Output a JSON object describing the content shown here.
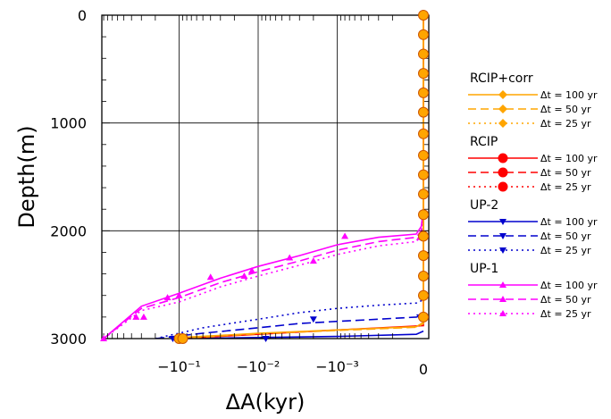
{
  "chart_data": {
    "type": "line",
    "xlabel": "ΔA(kyr)",
    "ylabel": "Depth(m)",
    "x_scale": "symlog",
    "x_ticks": [
      {
        "value": -0.1,
        "label": "−10⁻¹"
      },
      {
        "value": -0.01,
        "label": "−10⁻²"
      },
      {
        "value": -0.001,
        "label": "−10⁻³"
      },
      {
        "value": 0,
        "label": "0"
      }
    ],
    "y_ticks": [
      0,
      1000,
      2000,
      3000
    ],
    "ylim": [
      3000,
      0
    ],
    "grid": true,
    "legend": "right",
    "legend_groups": [
      {
        "title": "RCIP+corr",
        "color": "#ffa500",
        "marker": "diamond",
        "entries": [
          {
            "label": "Δt = 100 yr",
            "dash": "solid"
          },
          {
            "label": "Δt = 50 yr",
            "dash": "dashed"
          },
          {
            "label": "Δt = 25 yr",
            "dash": "dotted"
          }
        ]
      },
      {
        "title": "RCIP",
        "color": "#ff0000",
        "marker": "circle",
        "entries": [
          {
            "label": "Δt = 100 yr",
            "dash": "solid"
          },
          {
            "label": "Δt = 50 yr",
            "dash": "dashed"
          },
          {
            "label": "Δt = 25 yr",
            "dash": "dotted"
          }
        ]
      },
      {
        "title": "UP-2",
        "color": "#0000cd",
        "marker": "triangle-down",
        "entries": [
          {
            "label": "Δt = 100 yr",
            "dash": "solid"
          },
          {
            "label": "Δt = 50 yr",
            "dash": "dashed"
          },
          {
            "label": "Δt = 25 yr",
            "dash": "dotted"
          }
        ]
      },
      {
        "title": "UP-1",
        "color": "#ff00ff",
        "marker": "triangle-up",
        "entries": [
          {
            "label": "Δt = 100 yr",
            "dash": "solid"
          },
          {
            "label": "Δt = 50 yr",
            "dash": "dashed"
          },
          {
            "label": "Δt = 25 yr",
            "dash": "dotted"
          }
        ]
      }
    ],
    "series": [
      {
        "group": 3,
        "dash": "solid",
        "x": [
          -0.9,
          -0.3,
          -0.1,
          -0.03,
          -0.01,
          -0.003,
          -0.001,
          -0.0003,
          -0.0001,
          -3e-05,
          0
        ],
        "y": [
          3000,
          2700,
          2580,
          2440,
          2330,
          2230,
          2130,
          2060,
          2030,
          1960,
          1800
        ]
      },
      {
        "group": 3,
        "dash": "dashed",
        "x": [
          -0.9,
          -0.3,
          -0.1,
          -0.03,
          -0.01,
          -0.003,
          -0.001,
          -0.0003,
          -0.0001,
          -3e-05,
          0
        ],
        "y": [
          3000,
          2720,
          2620,
          2480,
          2380,
          2280,
          2180,
          2100,
          2060,
          2000,
          1850
        ]
      },
      {
        "group": 3,
        "dash": "dotted",
        "x": [
          -0.9,
          -0.3,
          -0.1,
          -0.03,
          -0.01,
          -0.003,
          -0.001,
          -0.0003,
          -0.0001,
          -3e-05,
          0
        ],
        "y": [
          3000,
          2740,
          2660,
          2520,
          2420,
          2320,
          2220,
          2140,
          2100,
          2040,
          1900
        ]
      },
      {
        "group": 2,
        "dash": "solid",
        "x": [
          -0.1,
          -0.01,
          -0.001,
          -0.0001,
          0
        ],
        "y": [
          3000,
          2990,
          2980,
          2960,
          2930
        ]
      },
      {
        "group": 2,
        "dash": "dashed",
        "x": [
          -0.2,
          -0.05,
          -0.01,
          -0.003,
          -0.001,
          -0.0003,
          -0.0001,
          0
        ],
        "y": [
          3000,
          2950,
          2900,
          2860,
          2840,
          2820,
          2800,
          2780
        ]
      },
      {
        "group": 2,
        "dash": "dotted",
        "x": [
          -0.2,
          -0.05,
          -0.01,
          -0.003,
          -0.001,
          -0.0003,
          -0.0001,
          0
        ],
        "y": [
          3000,
          2900,
          2820,
          2760,
          2720,
          2690,
          2670,
          2640
        ]
      },
      {
        "group": 1,
        "dash": "solid",
        "x": [
          -0.1,
          -0.01,
          -0.001,
          0,
          0,
          0
        ],
        "y": [
          3000,
          2960,
          2920,
          2880,
          1500,
          0
        ]
      },
      {
        "group": 0,
        "dash": "solid",
        "x": [
          -0.1,
          -0.03,
          -0.01,
          -0.001,
          -0.0001,
          0,
          0
        ],
        "y": [
          2990,
          2970,
          2950,
          2920,
          2890,
          2850,
          0
        ]
      },
      {
        "group": 0,
        "dash": "dashed",
        "x": [
          -0.1,
          -0.03,
          -0.01,
          -0.001,
          -0.0001,
          0,
          0
        ],
        "y": [
          3000,
          2975,
          2955,
          2925,
          2895,
          2860,
          0
        ]
      }
    ],
    "marker_points": [
      {
        "group": 3,
        "x": -0.9,
        "y": 3000
      },
      {
        "group": 3,
        "x": -0.35,
        "y": 2800
      },
      {
        "group": 3,
        "x": -0.28,
        "y": 2800
      },
      {
        "group": 3,
        "x": -0.14,
        "y": 2620
      },
      {
        "group": 3,
        "x": -0.1,
        "y": 2600
      },
      {
        "group": 3,
        "x": -0.04,
        "y": 2430
      },
      {
        "group": 3,
        "x": -0.015,
        "y": 2420
      },
      {
        "group": 3,
        "x": -0.012,
        "y": 2370
      },
      {
        "group": 3,
        "x": -0.004,
        "y": 2250
      },
      {
        "group": 3,
        "x": -0.002,
        "y": 2280
      },
      {
        "group": 3,
        "x": -0.0008,
        "y": 2050
      },
      {
        "group": 3,
        "x": -5e-05,
        "y": 2060
      },
      {
        "group": 3,
        "x": -3e-05,
        "y": 2050
      },
      {
        "group": 2,
        "x": -0.12,
        "y": 3000
      },
      {
        "group": 2,
        "x": -0.008,
        "y": 3000
      },
      {
        "group": 2,
        "x": -0.002,
        "y": 2820
      },
      {
        "group": 2,
        "x": -5e-05,
        "y": 2800
      },
      {
        "group": 0,
        "x": -0.1,
        "y": 3000
      },
      {
        "group": 0,
        "x": -0.09,
        "y": 3000
      },
      {
        "group": 0,
        "x": 0,
        "y": 0
      },
      {
        "group": 0,
        "x": 0,
        "y": 180
      },
      {
        "group": 0,
        "x": 0,
        "y": 360
      },
      {
        "group": 0,
        "x": 0,
        "y": 540
      },
      {
        "group": 0,
        "x": 0,
        "y": 720
      },
      {
        "group": 0,
        "x": 0,
        "y": 900
      },
      {
        "group": 0,
        "x": 0,
        "y": 1100
      },
      {
        "group": 0,
        "x": 0,
        "y": 1300
      },
      {
        "group": 0,
        "x": 0,
        "y": 1480
      },
      {
        "group": 0,
        "x": 0,
        "y": 1660
      },
      {
        "group": 0,
        "x": 0,
        "y": 1850
      },
      {
        "group": 0,
        "x": 0,
        "y": 2050
      },
      {
        "group": 0,
        "x": 0,
        "y": 2230
      },
      {
        "group": 0,
        "x": 0,
        "y": 2420
      },
      {
        "group": 0,
        "x": 0,
        "y": 2600
      },
      {
        "group": 0,
        "x": 0,
        "y": 2800
      }
    ]
  }
}
